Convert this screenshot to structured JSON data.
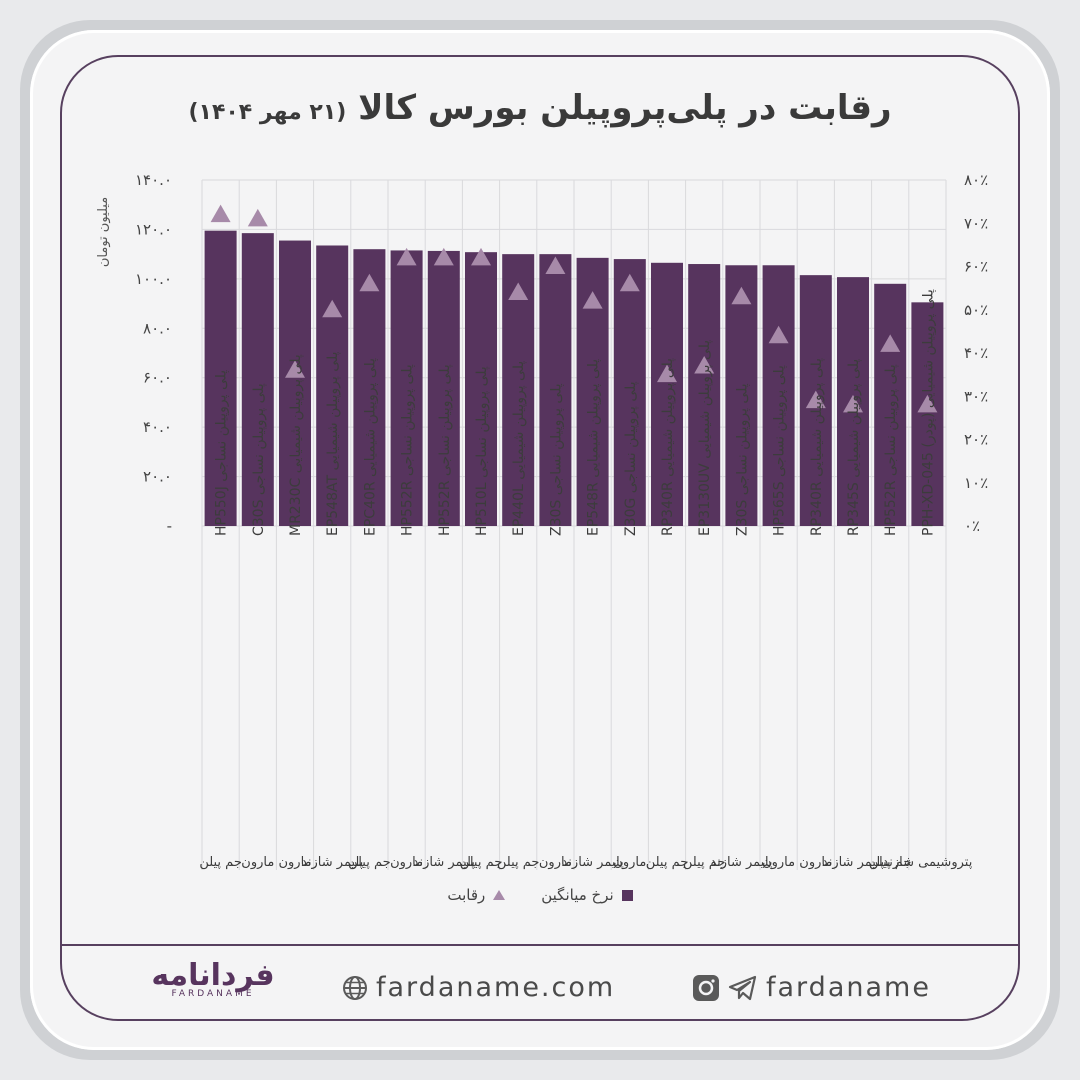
{
  "chart_data": {
    "type": "bar",
    "title": "رقابت در پلی‌پروپیلن بورس کالا",
    "subtitle": "(۲۱ مهر ۱۴۰۴)",
    "ylabel_left": "میلیون تومان",
    "ylim_left": [
      0,
      140
    ],
    "ylim_right": [
      0,
      80
    ],
    "left_ticks": [
      "-",
      "۲۰.۰",
      "۴۰.۰",
      "۶۰.۰",
      "۸۰.۰",
      "۱۰۰.۰",
      "۱۲۰.۰",
      "۱۴۰.۰"
    ],
    "right_ticks": [
      "۰٪",
      "۱۰٪",
      "۲۰٪",
      "۳۰٪",
      "۴۰٪",
      "۵۰٪",
      "۶۰٪",
      "۷۰٪",
      "۸۰٪"
    ],
    "categories": [
      "پلی پروپیلن نساجی HP550J",
      "پلی پروپیلن نساجی C30S",
      "پلی پروپیلن شیمیایی MR230C",
      "پلی پروپیلن شیمیایی EP548AT",
      "پلی پروپیلن شیمیایی EPC40R",
      "پلی پروپیلن نساجی HP552R",
      "پلی پروپیلن نساجی HP552R",
      "پلی پروپیلن نساجی HP510L",
      "پلی پروپیلن شیمیایی EP440L",
      "پلی پروپیلن نساجی Z30S",
      "پلی پروپیلن شیمیایی EP548R",
      "پلی پروپیلن نساجی Z30G",
      "پلی پروپیلن شیمیایی RP340R",
      "پلی پروپیلن شیمیایی EP3130UV",
      "پلی پروپیلن نساجی Z30S",
      "پلی پروپیلن نساجی HP565S",
      "پلی پروپیلن شیمیایی RP340R",
      "پلی پروپیلن شیمیایی RP345S",
      "پلی پروپیلن نساجی HP552R",
      "پلی پروپیلن شیمیایی (پودر) PPH-XD-045"
    ],
    "producers": [
      "جم پیلن",
      "مارون",
      "مارون",
      "پلیمر شازند",
      "جم پیلن",
      "مارون",
      "پلیمر شازند",
      "جم پیلن",
      "جم پیلن",
      "مارون",
      "پلیمر شازند",
      "مارون",
      "جم پیلن",
      "جم پیلن",
      "پلیمر شازند",
      "مارون",
      "مارون",
      "پلیمر شازند",
      "جم پیلن",
      "پتروشیمی شازند"
    ],
    "series": [
      {
        "name": "نرخ میانگین",
        "type": "bar",
        "axis": "left",
        "values": [
          119.5,
          118.5,
          115.5,
          113.5,
          112.0,
          111.5,
          111.3,
          110.8,
          110.0,
          110.0,
          108.5,
          108.0,
          106.5,
          106.0,
          105.5,
          105.5,
          101.5,
          100.7,
          98.0,
          90.5
        ]
      },
      {
        "name": "رقابت",
        "type": "scatter",
        "marker": "triangle",
        "axis": "right",
        "values": [
          72,
          71,
          36,
          50,
          56,
          62,
          62,
          62,
          54,
          60,
          52,
          56,
          35,
          37,
          53,
          44,
          29,
          28,
          42,
          28
        ]
      }
    ],
    "colors": {
      "bar": "#57345e",
      "marker": "#a78aa9",
      "grid": "#d9d9dc"
    }
  },
  "legend": {
    "avg_label": "نرخ میانگین",
    "comp_label": "رقابت"
  },
  "footer": {
    "brand_fa": "فردانامه",
    "brand_en": "FARDANAME",
    "website": "fardaname.com",
    "social_handle": "fardaname"
  }
}
